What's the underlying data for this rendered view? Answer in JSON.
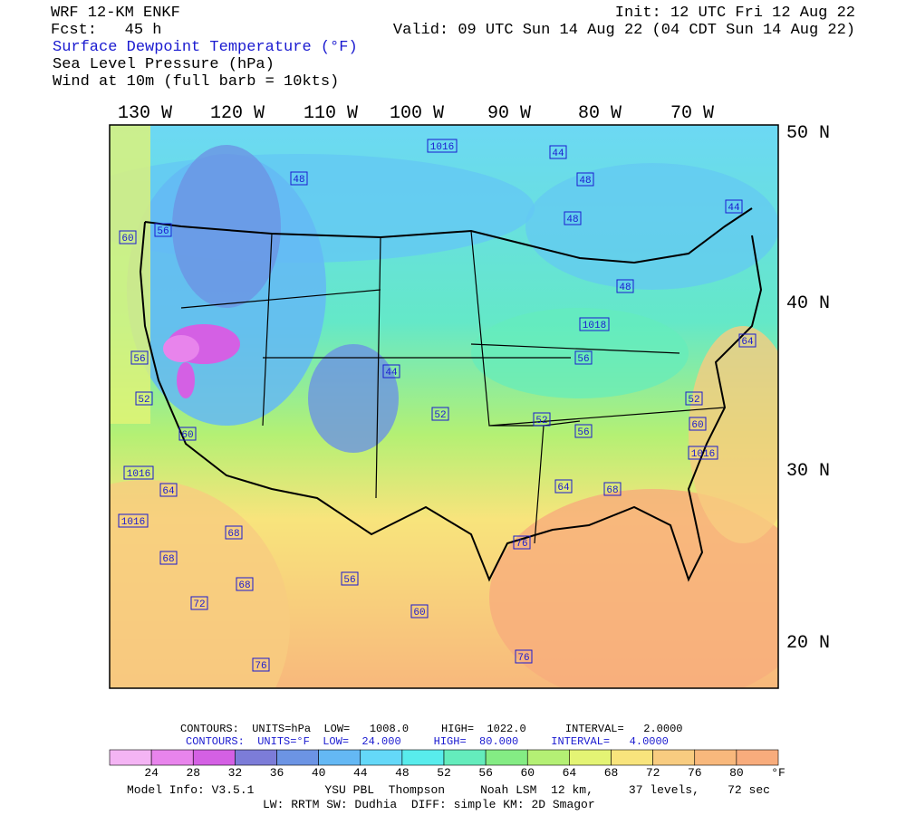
{
  "header": {
    "model": "WRF 12-KM ENKF",
    "init": "Init: 12 UTC Fri 12 Aug 22",
    "fcst": "Fcst:   45 h",
    "valid": "Valid: 09 UTC Sun 14 Aug 22 (04 CDT Sun 14 Aug 22)",
    "fields": [
      "Surface Dewpoint Temperature (°F)",
      "Sea Level Pressure (hPa)",
      "Wind at 10m (full barb = 10kts)"
    ]
  },
  "map": {
    "lon_labels": [
      "130 W",
      "120 W",
      "110 W",
      "100 W",
      "90 W",
      "80 W",
      "70 W"
    ],
    "lat_labels": [
      "50 N",
      "40 N",
      "30 N",
      "20 N"
    ],
    "contour_labels": [
      "1016",
      "44",
      "48",
      "48",
      "48",
      "60",
      "56",
      "44",
      "48",
      "1018",
      "56",
      "44",
      "52",
      "52",
      "60",
      "56",
      "52",
      "1016",
      "64",
      "68",
      "64",
      "60",
      "1016",
      "64",
      "1016",
      "68",
      "68",
      "68",
      "72",
      "76",
      "56",
      "60",
      "76",
      "76",
      "56",
      "52"
    ]
  },
  "contour_info": {
    "line1": "CONTOURS:  UNITS=hPa  LOW=   1008.0     HIGH=  1022.0      INTERVAL=   2.0000",
    "line2": "CONTOURS:  UNITS=°F  LOW=  24.000     HIGH=  80.000     INTERVAL=   4.0000"
  },
  "colorbar": {
    "labels": [
      24,
      28,
      32,
      36,
      40,
      44,
      48,
      52,
      56,
      60,
      64,
      68,
      72,
      76,
      80
    ],
    "unit": "°F",
    "colors": [
      "#f4b4f4",
      "#e884ec",
      "#d460e4",
      "#7c7cd8",
      "#6c94e4",
      "#64b8f4",
      "#64d8f8",
      "#58ecec",
      "#64ecbc",
      "#84ec84",
      "#b4f074",
      "#e4f474",
      "#f8e47c",
      "#f8cc80",
      "#f8b87c",
      "#f8ac7c"
    ]
  },
  "footer": [
    "Model Info: V3.5.1          YSU PBL  Thompson     Noah LSM  12 km,     37 levels,    72 sec",
    "LW: RRTM SW: Dudhia  DIFF: simple KM: 2D Smagor"
  ]
}
